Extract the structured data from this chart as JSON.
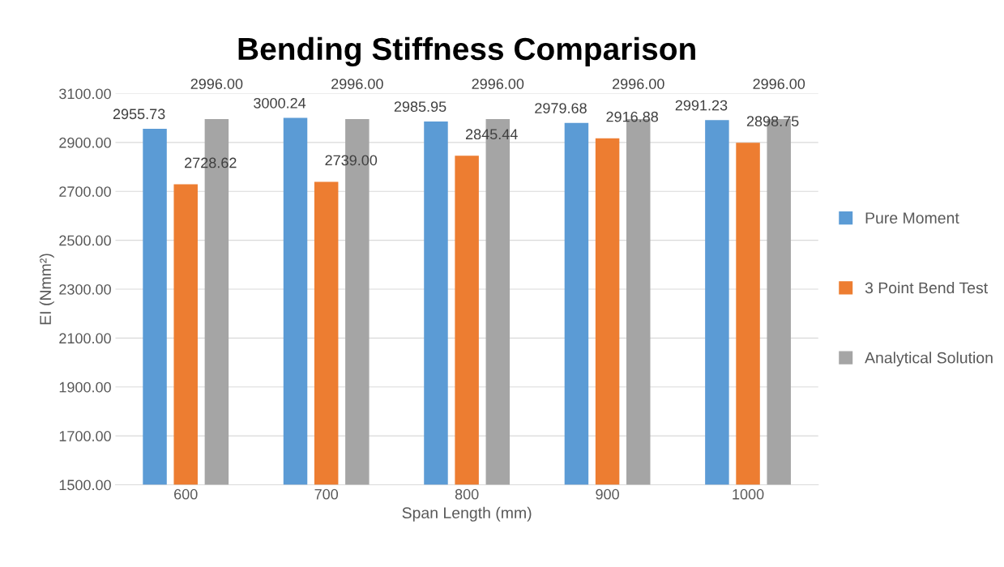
{
  "chart_data": {
    "type": "bar",
    "title": "Bending Stiffness Comparison",
    "xlabel": "Span Length (mm)",
    "ylabel": "EI (Nmm²)",
    "categories": [
      "600",
      "700",
      "800",
      "900",
      "1000"
    ],
    "series": [
      {
        "name": "Pure Moment",
        "color": "#5b9bd5",
        "values": [
          2955.73,
          3000.24,
          2985.95,
          2979.68,
          2991.23
        ],
        "value_labels": [
          "2955.73",
          "3000.24",
          "2985.95",
          "2979.68",
          "2991.23"
        ]
      },
      {
        "name": "3 Point Bend Test",
        "color": "#ed7d31",
        "values": [
          2728.62,
          2739.0,
          2845.44,
          2916.88,
          2898.75
        ],
        "value_labels": [
          "2728.62",
          "2739.00",
          "2845.44",
          "2916.88",
          "2898.75"
        ]
      },
      {
        "name": "Analytical Solution",
        "color": "#a5a5a5",
        "values": [
          2996.0,
          2996.0,
          2996.0,
          2996.0,
          2996.0
        ],
        "value_labels": [
          "2996.00",
          "2996.00",
          "2996.00",
          "2996.00",
          "2996.00"
        ]
      }
    ],
    "ylim": [
      1500,
      3100
    ],
    "yticks": [
      {
        "value": 1500,
        "label": "1500.00"
      },
      {
        "value": 1700,
        "label": "1700.00"
      },
      {
        "value": 1900,
        "label": "1900.00"
      },
      {
        "value": 2100,
        "label": "2100.00"
      },
      {
        "value": 2300,
        "label": "2300.00"
      },
      {
        "value": 2500,
        "label": "2500.00"
      },
      {
        "value": 2700,
        "label": "2700.00"
      },
      {
        "value": 2900,
        "label": "2900.00"
      },
      {
        "value": 3100,
        "label": "3100.00"
      }
    ],
    "grid": "y",
    "legend": "right"
  }
}
